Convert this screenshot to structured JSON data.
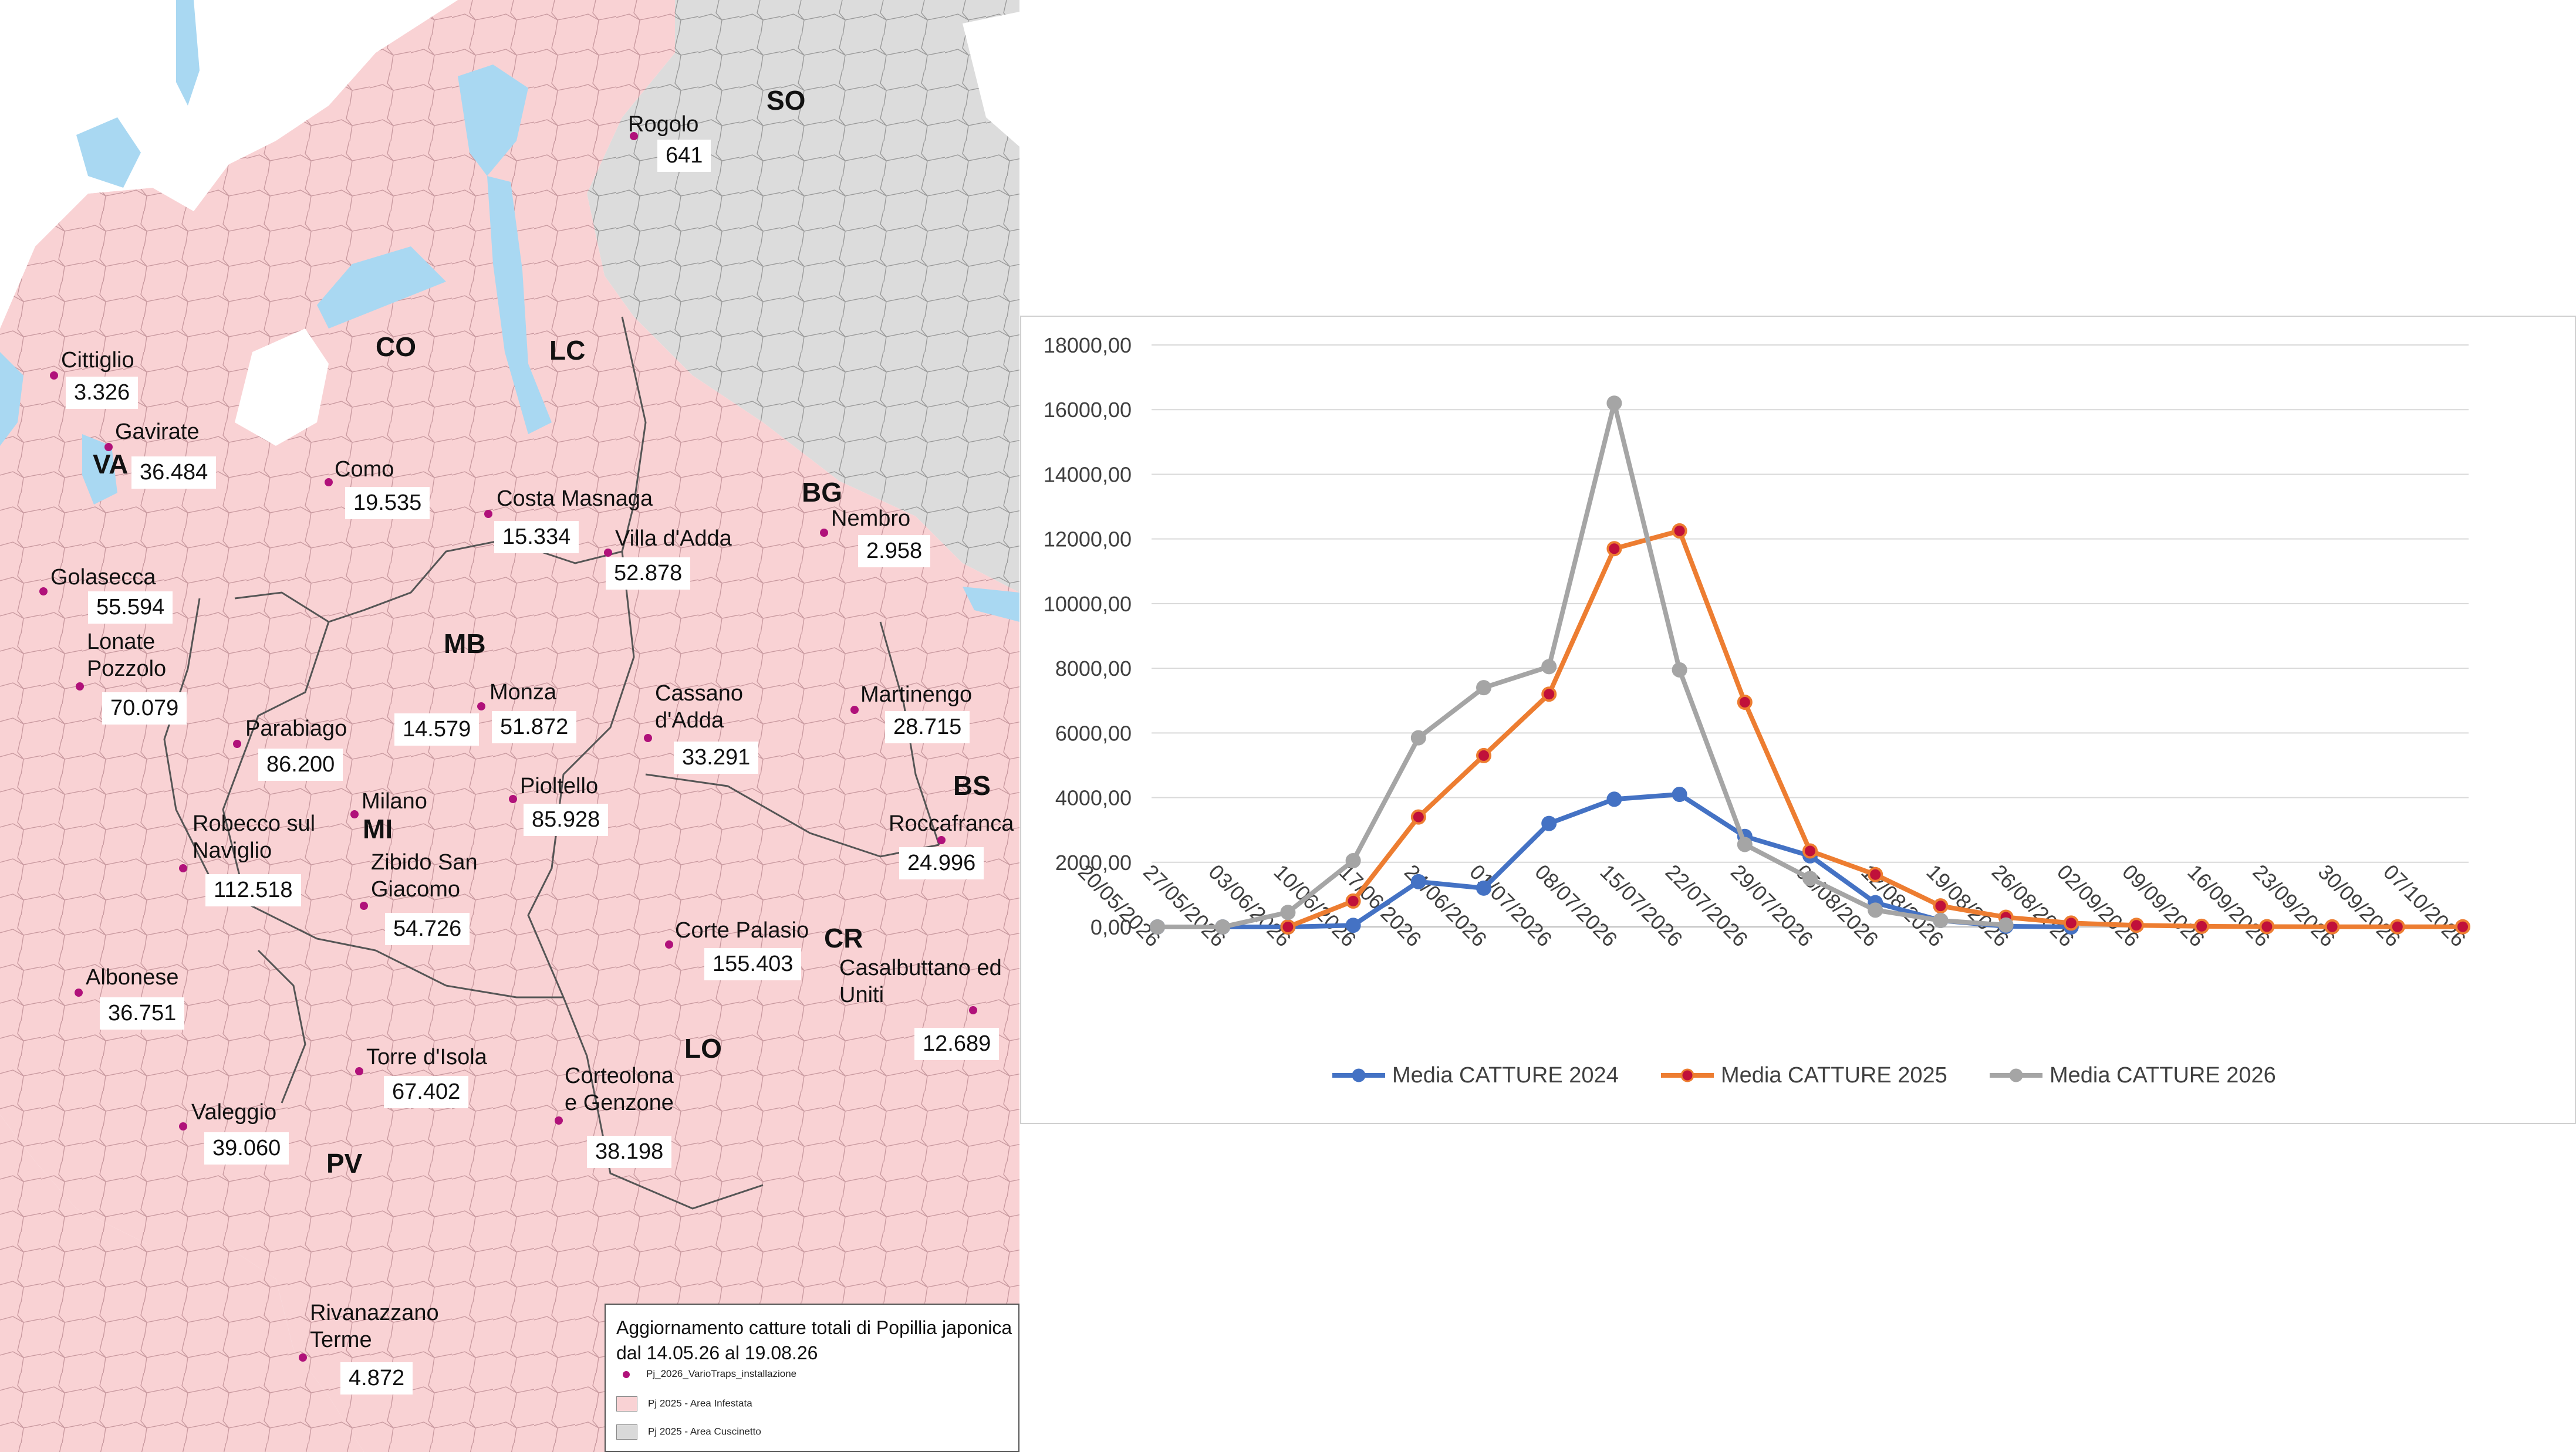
{
  "map": {
    "sites": [
      {
        "name": "Rogolo",
        "value": "641"
      },
      {
        "name": "Cittiglio",
        "value": "3.326"
      },
      {
        "name": "Gavirate",
        "value": "36.484"
      },
      {
        "name": "Como",
        "value": "19.535"
      },
      {
        "name": "Costa Masnaga",
        "value": "15.334"
      },
      {
        "name": "Villa d'Adda",
        "value": "52.878"
      },
      {
        "name": "Nembro",
        "value": "2.958"
      },
      {
        "name": "Golasecca",
        "value": "55.594"
      },
      {
        "name": "Lonate Pozzolo",
        "value": "70.079"
      },
      {
        "name": "Parabiago",
        "value": "86.200"
      },
      {
        "name": "Monza",
        "value": "51.872"
      },
      {
        "name": "Cassano d'Adda",
        "value": "33.291"
      },
      {
        "name": "Martinengo",
        "value": "28.715"
      },
      {
        "name": "Milano",
        "value": "14.579"
      },
      {
        "name": "Pioltello",
        "value": "85.928"
      },
      {
        "name": "Roccafranca",
        "value": "24.996"
      },
      {
        "name": "Robecco sul Naviglio",
        "value": "112.518"
      },
      {
        "name": "Zibido San Giacomo",
        "value": "54.726"
      },
      {
        "name": "Corte Palasio",
        "value": "155.403"
      },
      {
        "name": "Casalbuttano ed Uniti",
        "value": "12.689"
      },
      {
        "name": "Albonese",
        "value": "36.751"
      },
      {
        "name": "Torre d'Isola",
        "value": "67.402"
      },
      {
        "name": "Corteolona e Genzone",
        "value": "38.198"
      },
      {
        "name": "Valeggio",
        "value": "39.060"
      },
      {
        "name": "Rivanazzano Terme",
        "value": "4.872"
      }
    ],
    "provinces": [
      "SO",
      "CO",
      "LC",
      "VA",
      "BG",
      "MB",
      "MI",
      "BS",
      "CR",
      "LO",
      "PV"
    ],
    "legend": {
      "title": "Aggiornamento catture totali di Popillia japonica dal 14.05.26 al 19.08.26",
      "items": [
        {
          "label": "Pj_2026_VarioTraps_installazione",
          "color": "#b0117a"
        },
        {
          "label": "Pj 2025 - Area Infestata",
          "color": "#f9d2d4"
        },
        {
          "label": "Pj 2025 - Area Cuscinetto",
          "color": "#d9d9d9"
        }
      ]
    },
    "colors": {
      "infested": "#f9d2d4",
      "buffer": "#dcdcdc",
      "lake": "#a9d8f2",
      "trap": "#b0117a"
    }
  },
  "chart_data": {
    "type": "line",
    "categories": [
      "20/05/2026",
      "27/05/2026",
      "03/06/2026",
      "10/06/2026",
      "17/06/2026",
      "24/06/2026",
      "01/07/2026",
      "08/07/2026",
      "15/07/2026",
      "22/07/2026",
      "29/07/2026",
      "05/08/2026",
      "12/08/2026",
      "19/08/2026",
      "26/08/2026",
      "02/09/2026",
      "09/09/2026",
      "16/09/2026",
      "23/09/2026",
      "30/09/2026",
      "07/10/2026"
    ],
    "y_tick_labels": [
      "0,00",
      "2000,00",
      "4000,00",
      "6000,00",
      "8000,00",
      "10000,00",
      "12000,00",
      "14000,00",
      "16000,00",
      "18000,00"
    ],
    "ylim": [
      0,
      18000
    ],
    "grid": true,
    "legend_position": "bottom",
    "series": [
      {
        "name": "Media CATTURE 2024",
        "color": "#4472c4",
        "values": [
          0,
          0,
          0,
          50,
          1400,
          1200,
          3200,
          3950,
          4100,
          2800,
          2200,
          750,
          200,
          20,
          0,
          null,
          null,
          null,
          null,
          null,
          null
        ]
      },
      {
        "name": "Media CATTURE 2025",
        "color": "#ed7d31",
        "values": [
          null,
          null,
          0,
          800,
          3400,
          5300,
          7200,
          11700,
          12250,
          6950,
          2350,
          1620,
          650,
          300,
          120,
          50,
          20,
          10,
          5,
          5,
          5
        ]
      },
      {
        "name": "Media CATTURE 2026",
        "color": "#a5a5a5",
        "values": [
          0,
          0,
          450,
          2050,
          5850,
          7400,
          8050,
          16200,
          7950,
          2550,
          1500,
          520,
          200,
          60,
          null,
          null,
          null,
          null,
          null,
          null,
          null
        ]
      }
    ]
  }
}
